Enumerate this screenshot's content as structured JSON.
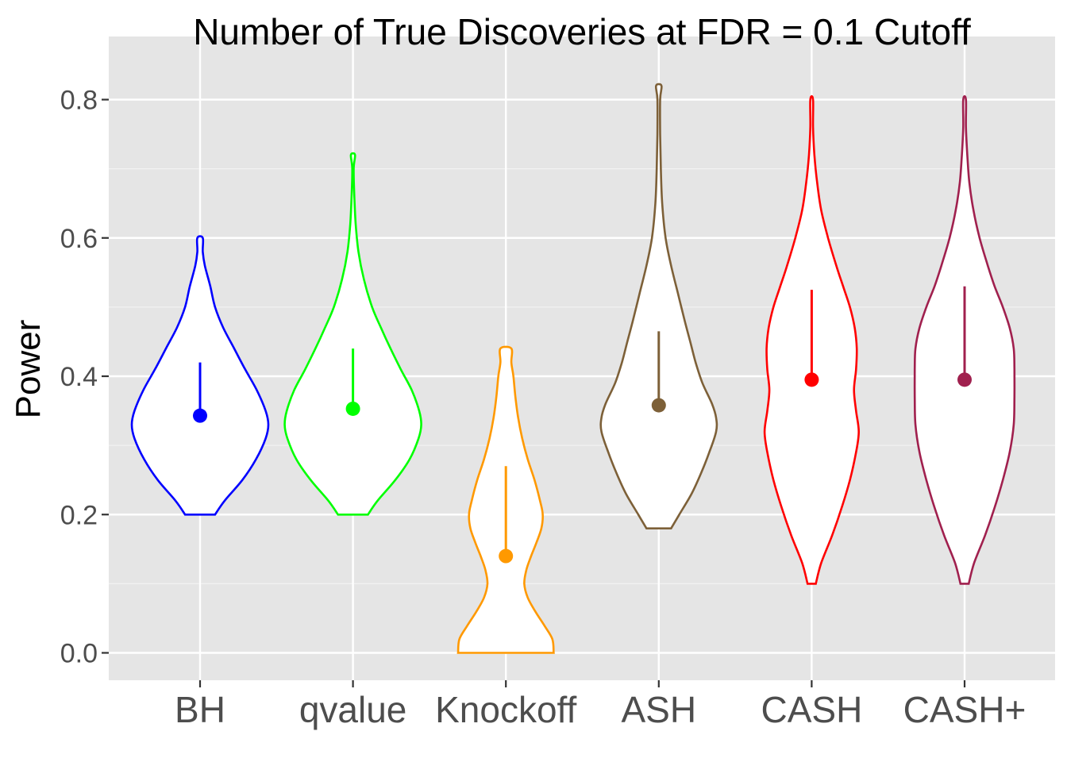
{
  "chart_data": {
    "type": "violin",
    "title": "Number of True Discoveries at FDR = 0.1 Cutoff",
    "xlabel": "",
    "ylabel": "Power",
    "ylim": [
      -0.075,
      0.86
    ],
    "yticks": [
      0.0,
      0.2,
      0.4,
      0.6,
      0.8
    ],
    "ytick_labels": [
      "0.0",
      "0.2",
      "0.4",
      "0.6",
      "0.8"
    ],
    "grid": true,
    "legend": "none",
    "categories": [
      "BH",
      "qvalue",
      "Knockoff",
      "ASH",
      "CASH",
      "CASH+"
    ],
    "series": [
      {
        "category": "BH",
        "color": "#0000ff",
        "min": 0.2,
        "max": 0.6,
        "mean": 0.343,
        "upper": 0.42,
        "profile": [
          [
            0.2,
            0.22
          ],
          [
            0.22,
            0.36
          ],
          [
            0.25,
            0.62
          ],
          [
            0.28,
            0.82
          ],
          [
            0.31,
            0.96
          ],
          [
            0.33,
            1.0
          ],
          [
            0.35,
            0.96
          ],
          [
            0.38,
            0.83
          ],
          [
            0.41,
            0.66
          ],
          [
            0.44,
            0.5
          ],
          [
            0.47,
            0.34
          ],
          [
            0.5,
            0.22
          ],
          [
            0.53,
            0.15
          ],
          [
            0.56,
            0.07
          ],
          [
            0.58,
            0.04
          ],
          [
            0.6,
            0.04
          ]
        ]
      },
      {
        "category": "qvalue",
        "color": "#00ff00",
        "min": 0.2,
        "max": 0.72,
        "mean": 0.353,
        "upper": 0.44,
        "profile": [
          [
            0.2,
            0.22
          ],
          [
            0.22,
            0.36
          ],
          [
            0.25,
            0.62
          ],
          [
            0.28,
            0.83
          ],
          [
            0.31,
            0.96
          ],
          [
            0.33,
            1.0
          ],
          [
            0.35,
            0.97
          ],
          [
            0.38,
            0.86
          ],
          [
            0.41,
            0.7
          ],
          [
            0.44,
            0.55
          ],
          [
            0.47,
            0.41
          ],
          [
            0.5,
            0.28
          ],
          [
            0.54,
            0.16
          ],
          [
            0.58,
            0.08
          ],
          [
            0.62,
            0.04
          ],
          [
            0.66,
            0.02
          ],
          [
            0.7,
            0.01
          ],
          [
            0.72,
            0.03
          ]
        ]
      },
      {
        "category": "Knockoff",
        "color": "#ff9900",
        "min": 0.0,
        "max": 0.44,
        "mean": 0.14,
        "upper": 0.27,
        "profile": [
          [
            0.0,
            0.7
          ],
          [
            0.02,
            0.68
          ],
          [
            0.04,
            0.56
          ],
          [
            0.06,
            0.43
          ],
          [
            0.08,
            0.32
          ],
          [
            0.1,
            0.27
          ],
          [
            0.12,
            0.3
          ],
          [
            0.14,
            0.37
          ],
          [
            0.16,
            0.45
          ],
          [
            0.18,
            0.52
          ],
          [
            0.2,
            0.54
          ],
          [
            0.22,
            0.5
          ],
          [
            0.25,
            0.42
          ],
          [
            0.28,
            0.32
          ],
          [
            0.31,
            0.24
          ],
          [
            0.34,
            0.18
          ],
          [
            0.37,
            0.14
          ],
          [
            0.4,
            0.11
          ],
          [
            0.42,
            0.08
          ],
          [
            0.44,
            0.08
          ]
        ]
      },
      {
        "category": "ASH",
        "color": "#7d6038",
        "min": 0.18,
        "max": 0.82,
        "mean": 0.358,
        "upper": 0.465,
        "profile": [
          [
            0.18,
            0.18
          ],
          [
            0.2,
            0.3
          ],
          [
            0.23,
            0.48
          ],
          [
            0.26,
            0.62
          ],
          [
            0.29,
            0.74
          ],
          [
            0.32,
            0.84
          ],
          [
            0.34,
            0.84
          ],
          [
            0.36,
            0.78
          ],
          [
            0.39,
            0.64
          ],
          [
            0.42,
            0.54
          ],
          [
            0.45,
            0.46
          ],
          [
            0.48,
            0.38
          ],
          [
            0.52,
            0.28
          ],
          [
            0.56,
            0.18
          ],
          [
            0.6,
            0.1
          ],
          [
            0.65,
            0.05
          ],
          [
            0.7,
            0.03
          ],
          [
            0.75,
            0.02
          ],
          [
            0.8,
            0.02
          ],
          [
            0.82,
            0.04
          ]
        ]
      },
      {
        "category": "CASH",
        "color": "#ff0000",
        "min": 0.1,
        "max": 0.8,
        "mean": 0.395,
        "upper": 0.525,
        "profile": [
          [
            0.1,
            0.06
          ],
          [
            0.13,
            0.14
          ],
          [
            0.17,
            0.3
          ],
          [
            0.21,
            0.44
          ],
          [
            0.25,
            0.56
          ],
          [
            0.29,
            0.65
          ],
          [
            0.32,
            0.69
          ],
          [
            0.35,
            0.65
          ],
          [
            0.38,
            0.62
          ],
          [
            0.41,
            0.65
          ],
          [
            0.44,
            0.66
          ],
          [
            0.47,
            0.63
          ],
          [
            0.5,
            0.56
          ],
          [
            0.53,
            0.46
          ],
          [
            0.56,
            0.36
          ],
          [
            0.6,
            0.24
          ],
          [
            0.64,
            0.14
          ],
          [
            0.68,
            0.08
          ],
          [
            0.72,
            0.04
          ],
          [
            0.76,
            0.02
          ],
          [
            0.8,
            0.02
          ]
        ]
      },
      {
        "category": "CASH+",
        "color": "#a0204e",
        "min": 0.1,
        "max": 0.8,
        "mean": 0.395,
        "upper": 0.53,
        "profile": [
          [
            0.1,
            0.06
          ],
          [
            0.13,
            0.14
          ],
          [
            0.17,
            0.3
          ],
          [
            0.21,
            0.44
          ],
          [
            0.25,
            0.56
          ],
          [
            0.29,
            0.66
          ],
          [
            0.33,
            0.72
          ],
          [
            0.37,
            0.73
          ],
          [
            0.41,
            0.73
          ],
          [
            0.44,
            0.72
          ],
          [
            0.47,
            0.66
          ],
          [
            0.5,
            0.56
          ],
          [
            0.53,
            0.44
          ],
          [
            0.56,
            0.34
          ],
          [
            0.6,
            0.22
          ],
          [
            0.64,
            0.13
          ],
          [
            0.68,
            0.07
          ],
          [
            0.72,
            0.04
          ],
          [
            0.76,
            0.02
          ],
          [
            0.8,
            0.02
          ]
        ]
      }
    ]
  }
}
